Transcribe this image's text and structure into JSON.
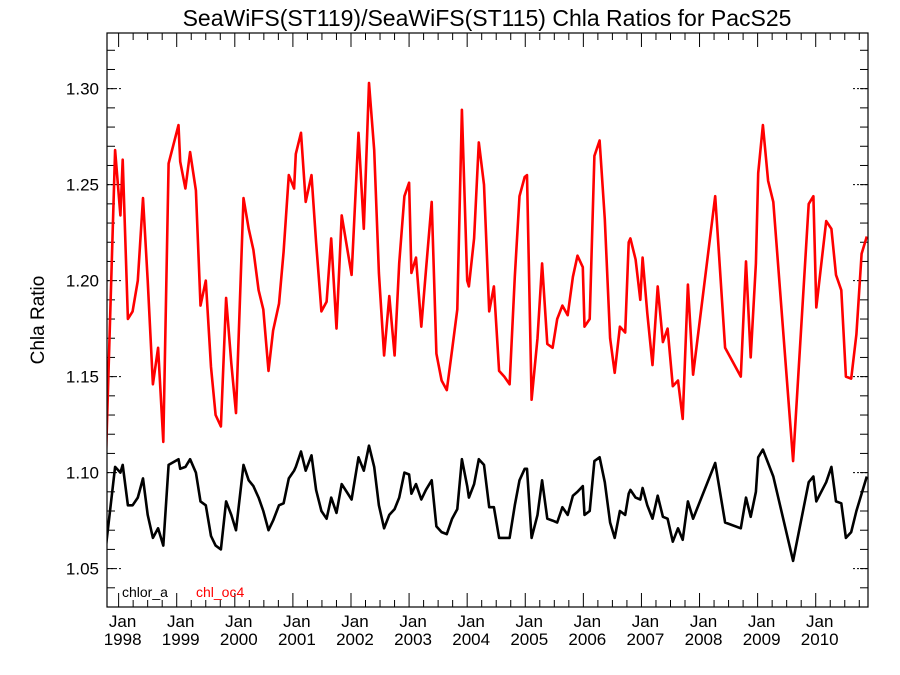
{
  "chart_data": {
    "type": "line",
    "title": "SeaWiFS(ST119)/SeaWiFS(ST115)  Chla Ratios for PacS25",
    "xlabel": "",
    "ylabel": "Chla Ratio",
    "xlim": [
      1997.8,
      2010.9
    ],
    "ylim": [
      1.03,
      1.329
    ],
    "yticks": [
      1.05,
      1.1,
      1.15,
      1.2,
      1.25,
      1.3
    ],
    "ytick_labels": [
      "1.05",
      "1.10",
      "1.15",
      "1.20",
      "1.25",
      "1.30"
    ],
    "xticks": [
      {
        "value": 1998,
        "month": "Jan",
        "year": "1998"
      },
      {
        "value": 1999,
        "month": "Jan",
        "year": "1999"
      },
      {
        "value": 2000,
        "month": "Jan",
        "year": "2000"
      },
      {
        "value": 2001,
        "month": "Jan",
        "year": "2001"
      },
      {
        "value": 2002,
        "month": "Jan",
        "year": "2002"
      },
      {
        "value": 2003,
        "month": "Jan",
        "year": "2003"
      },
      {
        "value": 2004,
        "month": "Jan",
        "year": "2004"
      },
      {
        "value": 2005,
        "month": "Jan",
        "year": "2005"
      },
      {
        "value": 2006,
        "month": "Jan",
        "year": "2006"
      },
      {
        "value": 2007,
        "month": "Jan",
        "year": "2007"
      },
      {
        "value": 2008,
        "month": "Jan",
        "year": "2008"
      },
      {
        "value": 2009,
        "month": "Jan",
        "year": "2009"
      },
      {
        "value": 2010,
        "month": "Jan",
        "year": "2010"
      }
    ],
    "legend": {
      "placement": "bottom-left"
    },
    "x": [
      1997.78,
      1997.94,
      1998.03,
      1998.07,
      1998.16,
      1998.24,
      1998.33,
      1998.42,
      1998.5,
      1998.59,
      1998.68,
      1998.77,
      1998.86,
      1999.03,
      1999.06,
      1999.15,
      1999.23,
      1999.33,
      1999.41,
      1999.5,
      1999.59,
      1999.67,
      1999.76,
      1999.85,
      1999.94,
      2000.02,
      2000.15,
      2000.24,
      2000.32,
      2000.41,
      2000.49,
      2000.58,
      2000.66,
      2000.76,
      2000.84,
      2000.93,
      2001.02,
      2001.05,
      2001.14,
      2001.22,
      2001.32,
      2001.4,
      2001.49,
      2001.58,
      2001.66,
      2001.75,
      2001.84,
      2002.01,
      2002.13,
      2002.22,
      2002.31,
      2002.4,
      2002.48,
      2002.57,
      2002.66,
      2002.75,
      2002.83,
      2002.92,
      2003.0,
      2003.04,
      2003.12,
      2003.21,
      2003.29,
      2003.39,
      2003.47,
      2003.56,
      2003.65,
      2003.74,
      2003.83,
      2003.91,
      2004.0,
      2004.03,
      2004.12,
      2004.2,
      2004.29,
      2004.38,
      2004.46,
      2004.55,
      2004.64,
      2004.73,
      2004.82,
      2004.9,
      2004.99,
      2005.03,
      2005.11,
      2005.21,
      2005.29,
      2005.38,
      2005.47,
      2005.55,
      2005.64,
      2005.73,
      2005.82,
      2005.9,
      2005.99,
      2006.02,
      2006.11,
      2006.19,
      2006.28,
      2006.37,
      2006.46,
      2006.54,
      2006.63,
      2006.72,
      2006.78,
      2006.81,
      2006.9,
      2006.98,
      2007.02,
      2007.1,
      2007.19,
      2007.28,
      2007.37,
      2007.45,
      2007.54,
      2007.63,
      2007.71,
      2007.8,
      2007.89,
      2008.27,
      2008.44,
      2008.71,
      2008.8,
      2008.88,
      2008.97,
      2009.01,
      2009.09,
      2009.18,
      2009.27,
      2009.61,
      2009.88,
      2009.96,
      2010.01,
      2010.18,
      2010.27,
      2010.35,
      2010.44,
      2010.52,
      2010.61,
      2010.7,
      2010.79,
      2010.88
    ],
    "series": [
      {
        "name": "chlor_a",
        "color": "#000000",
        "values": [
          1.061,
          1.103,
          1.1,
          1.104,
          1.083,
          1.083,
          1.087,
          1.097,
          1.078,
          1.066,
          1.071,
          1.062,
          1.104,
          1.107,
          1.102,
          1.103,
          1.107,
          1.1,
          1.085,
          1.083,
          1.067,
          1.062,
          1.06,
          1.085,
          1.078,
          1.07,
          1.104,
          1.096,
          1.093,
          1.087,
          1.08,
          1.07,
          1.075,
          1.083,
          1.084,
          1.097,
          1.101,
          1.103,
          1.111,
          1.101,
          1.109,
          1.091,
          1.08,
          1.076,
          1.087,
          1.079,
          1.094,
          1.086,
          1.108,
          1.101,
          1.114,
          1.103,
          1.083,
          1.071,
          1.078,
          1.081,
          1.087,
          1.1,
          1.099,
          1.089,
          1.094,
          1.086,
          1.091,
          1.096,
          1.072,
          1.069,
          1.068,
          1.076,
          1.081,
          1.107,
          1.093,
          1.087,
          1.094,
          1.107,
          1.104,
          1.082,
          1.082,
          1.066,
          1.066,
          1.066,
          1.083,
          1.096,
          1.102,
          1.102,
          1.066,
          1.078,
          1.096,
          1.076,
          1.075,
          1.074,
          1.082,
          1.078,
          1.088,
          1.09,
          1.093,
          1.078,
          1.08,
          1.106,
          1.108,
          1.095,
          1.074,
          1.066,
          1.08,
          1.078,
          1.089,
          1.091,
          1.087,
          1.086,
          1.092,
          1.083,
          1.076,
          1.088,
          1.077,
          1.076,
          1.064,
          1.071,
          1.065,
          1.085,
          1.076,
          1.105,
          1.074,
          1.071,
          1.087,
          1.077,
          1.09,
          1.108,
          1.112,
          1.105,
          1.098,
          1.054,
          1.095,
          1.098,
          1.085,
          1.095,
          1.103,
          1.085,
          1.084,
          1.066,
          1.069,
          1.08,
          1.089,
          1.098
        ]
      },
      {
        "name": "chl_oc4",
        "color": "#ff0000",
        "values": [
          1.105,
          1.268,
          1.234,
          1.263,
          1.18,
          1.184,
          1.2,
          1.243,
          1.2,
          1.146,
          1.165,
          1.116,
          1.261,
          1.281,
          1.262,
          1.248,
          1.267,
          1.247,
          1.187,
          1.2,
          1.155,
          1.13,
          1.124,
          1.191,
          1.157,
          1.131,
          1.243,
          1.227,
          1.216,
          1.195,
          1.185,
          1.153,
          1.174,
          1.188,
          1.215,
          1.255,
          1.248,
          1.266,
          1.277,
          1.241,
          1.255,
          1.22,
          1.184,
          1.189,
          1.222,
          1.175,
          1.234,
          1.203,
          1.277,
          1.227,
          1.303,
          1.268,
          1.204,
          1.161,
          1.192,
          1.161,
          1.209,
          1.244,
          1.251,
          1.204,
          1.212,
          1.176,
          1.205,
          1.241,
          1.162,
          1.148,
          1.143,
          1.164,
          1.185,
          1.289,
          1.2,
          1.197,
          1.222,
          1.272,
          1.25,
          1.184,
          1.197,
          1.153,
          1.15,
          1.146,
          1.202,
          1.244,
          1.254,
          1.255,
          1.138,
          1.17,
          1.209,
          1.167,
          1.165,
          1.18,
          1.187,
          1.182,
          1.202,
          1.213,
          1.207,
          1.176,
          1.18,
          1.265,
          1.273,
          1.232,
          1.17,
          1.152,
          1.176,
          1.173,
          1.22,
          1.222,
          1.211,
          1.19,
          1.212,
          1.183,
          1.156,
          1.197,
          1.168,
          1.175,
          1.145,
          1.148,
          1.128,
          1.198,
          1.151,
          1.244,
          1.165,
          1.15,
          1.21,
          1.16,
          1.209,
          1.256,
          1.281,
          1.252,
          1.241,
          1.106,
          1.24,
          1.244,
          1.186,
          1.231,
          1.227,
          1.203,
          1.195,
          1.15,
          1.149,
          1.172,
          1.214,
          1.223
        ]
      }
    ]
  }
}
